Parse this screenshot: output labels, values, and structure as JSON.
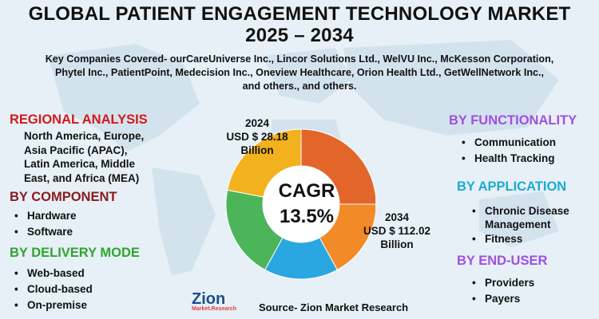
{
  "title": {
    "line1": "GLOBAL PATIENT ENGAGEMENT TECHNOLOGY MARKET",
    "line2": "2025 – 2034"
  },
  "companies": {
    "line1": "Key Companies Covered- ourCareUniverse Inc., Lincor Solutions Ltd., WelVU Inc., McKesson Corporation,",
    "line2": "Phytel Inc., PatientPoint, Medecision Inc., Oneview Healthcare, Orion Health Ltd., GetWellNetwork Inc.,",
    "line3": "and others., and others."
  },
  "regional": {
    "heading": "REGIONAL ANALYSIS",
    "lines": [
      "North America, Europe,",
      "Asia Pacific (APAC),",
      "Latin America, Middle",
      "East, and Africa (MEA)"
    ]
  },
  "component": {
    "heading": "BY COMPONENT",
    "items": [
      "Hardware",
      "Software"
    ]
  },
  "delivery": {
    "heading": "BY DELIVERY MODE",
    "items": [
      "Web-based",
      "Cloud-based",
      "On-premise"
    ]
  },
  "functionality": {
    "heading": "BY FUNCTIONALITY",
    "items": [
      "Communication",
      "Health Tracking"
    ]
  },
  "application": {
    "heading": "BY APPLICATION",
    "item1_line1": "Chronic Disease",
    "item1_line2": "Management",
    "item2": "Fitness"
  },
  "enduser": {
    "heading": "BY END-USER",
    "items": [
      "Providers",
      "Payers"
    ]
  },
  "market": {
    "y2024": {
      "year": "2024",
      "value": "USD $ 28.18",
      "unit": "Billion"
    },
    "y2034": {
      "year": "2034",
      "value": "USD $ 112.02",
      "unit": "Billion"
    },
    "cagr_label": "CAGR",
    "cagr_value": "13.5%"
  },
  "donut": {
    "segments": [
      {
        "color": "#e2662a",
        "fraction": 0.25
      },
      {
        "color": "#f28a27",
        "fraction": 0.17
      },
      {
        "color": "#2aa6e0",
        "fraction": 0.16
      },
      {
        "color": "#4cb55a",
        "fraction": 0.2
      },
      {
        "color": "#f2b21e",
        "fraction": 0.22
      }
    ]
  },
  "source": "Source- Zion Market Research",
  "logo": {
    "name": "Zion",
    "sub": "Market.Research"
  },
  "colors": {
    "red": "#d11a1a",
    "maroon": "#8b1a1a",
    "green": "#2fa52f",
    "purple": "#a050e0",
    "cyan": "#1eaad0"
  }
}
